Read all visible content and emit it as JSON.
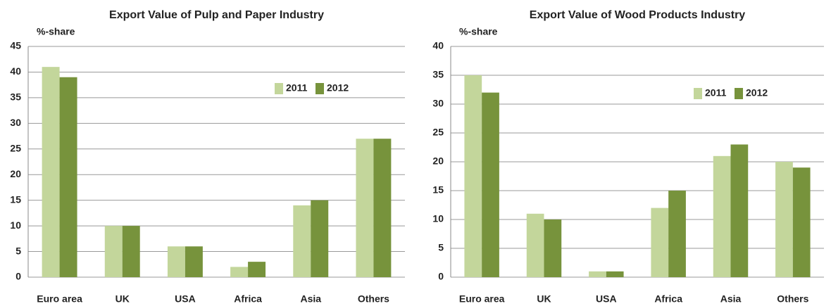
{
  "chart_data": [
    {
      "type": "bar",
      "title": "Export Value of Pulp and Paper Industry",
      "y_label": "%-share",
      "categories": [
        "Euro area",
        "UK",
        "USA",
        "Africa",
        "Asia",
        "Others"
      ],
      "series": [
        {
          "name": "2011",
          "color": "#c3d69b",
          "values": [
            41,
            10,
            6,
            2,
            14,
            27
          ]
        },
        {
          "name": "2012",
          "color": "#77933c",
          "values": [
            39,
            10,
            6,
            3,
            15,
            27
          ]
        }
      ],
      "ylim": [
        0,
        45
      ],
      "yticks": [
        0,
        5,
        10,
        15,
        20,
        25,
        30,
        35,
        40,
        45
      ],
      "grid": true,
      "legend": "upper right"
    },
    {
      "type": "bar",
      "title": "Export Value of Wood Products Industry",
      "y_label": "%-share",
      "categories": [
        "Euro area",
        "UK",
        "USA",
        "Africa",
        "Asia",
        "Others"
      ],
      "series": [
        {
          "name": "2011",
          "color": "#c3d69b",
          "values": [
            35,
            11,
            1,
            12,
            21,
            20
          ]
        },
        {
          "name": "2012",
          "color": "#77933c",
          "values": [
            32,
            10,
            1,
            15,
            23,
            19
          ]
        }
      ],
      "ylim": [
        0,
        40
      ],
      "yticks": [
        0,
        5,
        10,
        15,
        20,
        25,
        30,
        35,
        40
      ],
      "grid": true,
      "legend": "upper right"
    }
  ]
}
